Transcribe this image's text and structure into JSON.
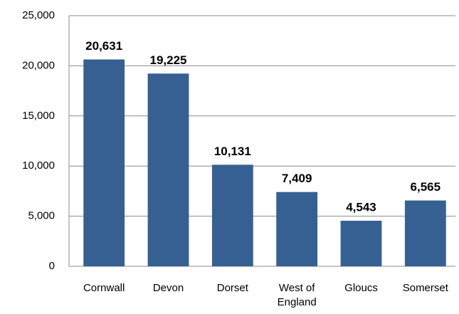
{
  "chart_data": {
    "type": "bar",
    "categories": [
      "Cornwall",
      "Devon",
      "Dorset",
      "West of England",
      "Gloucs",
      "Somerset"
    ],
    "values": [
      20631,
      19225,
      10131,
      7409,
      4543,
      6565
    ],
    "value_labels": [
      "20,631",
      "19,225",
      "10,131",
      "7,409",
      "4,543",
      "6,565"
    ],
    "color": "#376092",
    "ylim": [
      0,
      25000
    ],
    "yticks": [
      0,
      {
        "value": 5000,
        "label": "5,000"
      },
      {
        "value": 10000,
        "label": "10,000"
      },
      {
        "value": 15000,
        "label": "15,000"
      },
      {
        "value": 20000,
        "label": "20,000"
      },
      {
        "value": 25000,
        "label": "25,000"
      }
    ],
    "grid": true
  }
}
